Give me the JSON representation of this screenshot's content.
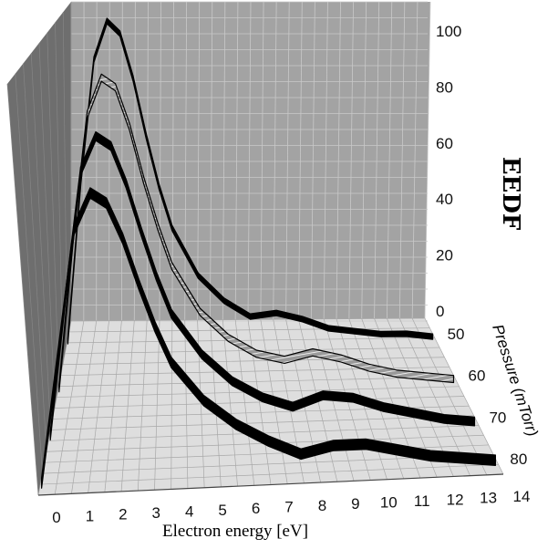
{
  "chart_data": {
    "type": "line",
    "projection": "3d-ribbon",
    "xlabel": "Electron energy [eV]",
    "ylabel": "EEDF",
    "zlabel": "Pressure (mTorr)",
    "x_ticks": [
      "0",
      "1",
      "2",
      "3",
      "4",
      "5",
      "6",
      "7",
      "8",
      "9",
      "10",
      "11",
      "12",
      "13",
      "14"
    ],
    "y_ticks": [
      "0",
      "20",
      "40",
      "60",
      "80",
      "100"
    ],
    "z_ticks": [
      "50",
      "60",
      "70",
      "80"
    ],
    "xlim": [
      0,
      14
    ],
    "ylim": [
      0,
      100
    ],
    "grid": true,
    "x": [
      0,
      0.5,
      1,
      1.5,
      2,
      2.5,
      3,
      3.5,
      4,
      5,
      6,
      7,
      8,
      9,
      10,
      11,
      12,
      13,
      14
    ],
    "series": [
      {
        "pressure": 50,
        "color": "#000000",
        "values": [
          0,
          50,
          88,
          100,
          96,
          82,
          64,
          48,
          35,
          20,
          12,
          7,
          8,
          6,
          3,
          2,
          1,
          1,
          0
        ]
      },
      {
        "pressure": 60,
        "color": "#a9a9a9",
        "values": [
          0,
          45,
          82,
          93,
          90,
          78,
          62,
          48,
          36,
          22,
          14,
          9,
          7,
          9,
          7,
          4,
          2,
          1,
          0
        ]
      },
      {
        "pressure": 70,
        "color": "#000000",
        "values": [
          0,
          40,
          76,
          86,
          83,
          72,
          58,
          45,
          34,
          22,
          14,
          9,
          6,
          9,
          8,
          5,
          3,
          1,
          0
        ]
      },
      {
        "pressure": 80,
        "color": "#000000",
        "values": [
          0,
          35,
          70,
          80,
          77,
          67,
          54,
          42,
          32,
          21,
          14,
          9,
          5,
          7,
          7,
          5,
          3,
          2,
          1
        ]
      }
    ]
  }
}
